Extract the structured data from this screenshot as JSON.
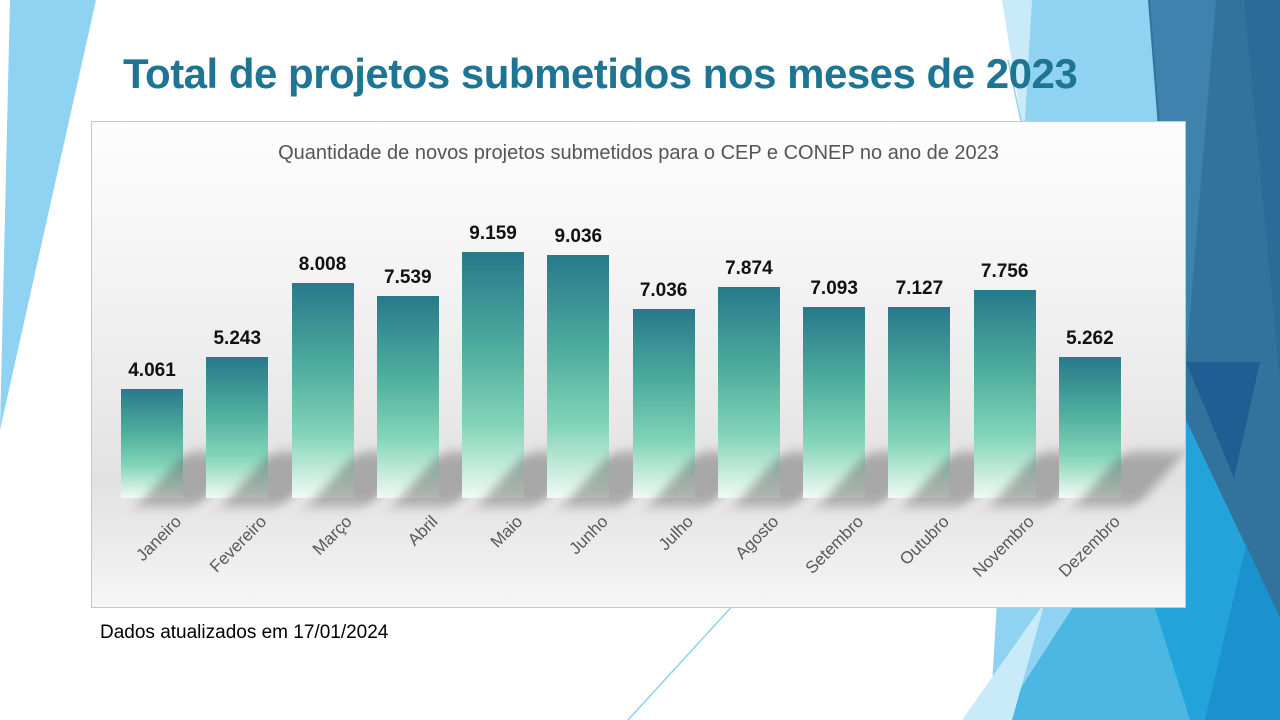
{
  "slide": {
    "title": "Total de projetos submetidos nos meses de 2023",
    "footer": "Dados atualizados em 17/01/2024"
  },
  "chart_data": {
    "type": "bar",
    "title": "Quantidade de novos projetos submetidos para o CEP e CONEP no ano de 2023",
    "categories": [
      "Janeiro",
      "Fevereiro",
      "Março",
      "Abril",
      "Maio",
      "Junho",
      "Julho",
      "Agosto",
      "Setembro",
      "Outubro",
      "Novembro",
      "Dezembro"
    ],
    "values": [
      4061,
      5243,
      8008,
      7539,
      9159,
      9036,
      7036,
      7874,
      7093,
      7127,
      7756,
      5262
    ],
    "value_labels": [
      "4.061",
      "5.243",
      "8.008",
      "7.539",
      "9.159",
      "9.036",
      "7.036",
      "7.874",
      "7.093",
      "7.127",
      "7.756",
      "5.262"
    ],
    "xlabel": "",
    "ylabel": "",
    "ylim": [
      0,
      9500
    ],
    "grid": false,
    "legend": "none",
    "value_labels_position": "above-bars",
    "category_labels_rotation_deg": -45
  },
  "colors": {
    "title": "#1d7493",
    "chart_title": "#555555",
    "value_label": "#111111",
    "month_label": "#595959",
    "footer": "#000000",
    "bar_top": "#27798a",
    "bar_mid": "#4fae9e",
    "bar_low": "#82d4b8",
    "bar_bottom": "#f1faf4",
    "decor_light": "#8fd2f1",
    "decor_pale": "#c9eaf9",
    "decor_steel": "#31739c",
    "decor_steel_light": "#3f82ad",
    "decor_steel_dark": "#2a6b97",
    "decor_navy": "#1f5d92",
    "decor_cyan": "#22a4db",
    "decor_cyan_med": "#4cb7e2",
    "decor_cyan_dark": "#1b91cd"
  }
}
